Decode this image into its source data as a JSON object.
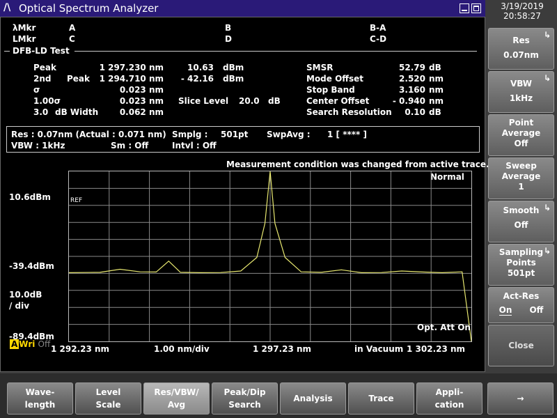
{
  "window": {
    "title": "Optical Spectrum Analyzer",
    "logo": "/\\"
  },
  "datetime": {
    "date": "3/19/2019",
    "time": "20:58:27"
  },
  "markers": {
    "row1": {
      "label": "λMkr",
      "a": "A",
      "b": "B",
      "ba": "B-A"
    },
    "row2": {
      "label": "LMkr",
      "c": "C",
      "d": "D",
      "cd": "C-D"
    }
  },
  "test": {
    "name": "DFB-LD Test",
    "left": [
      {
        "label": "Peak",
        "label2": "",
        "wl": "1 297.230 nm",
        "val": "10.63",
        "unit": "dBm"
      },
      {
        "label": "2nd",
        "label2": "Peak",
        "wl": "1 294.710 nm",
        "val": "-  42.16",
        "unit": "dBm"
      },
      {
        "label": "σ",
        "label2": "",
        "wl": "0.023 nm"
      },
      {
        "label": "1.00σ",
        "label2": "",
        "wl": "0.023 nm"
      },
      {
        "label": "3.0",
        "label2": "dB Width",
        "wl": "0.062 nm"
      }
    ],
    "slice": {
      "label": "Slice Level",
      "value": "20.0",
      "unit": "dB"
    },
    "right": [
      {
        "label": "SMSR",
        "value": "52.79",
        "unit": "dB"
      },
      {
        "label": "Mode Offset",
        "value": "2.520",
        "unit": "nm"
      },
      {
        "label": "Stop Band",
        "value": "3.160",
        "unit": "nm"
      },
      {
        "label": "Center Offset",
        "value": "-  0.940",
        "unit": "nm"
      },
      {
        "label": "Search Resolution",
        "value": "0.10",
        "unit": "dB"
      }
    ]
  },
  "conditions": {
    "res": "Res :  0.07nm (Actual :  0.071 nm)",
    "smplg": "Smplg :",
    "smplg_val": "501pt",
    "swpavg": "SwpAvg :",
    "swpavg_val": "1 [     ****  ]",
    "vbw": "VBW :    1kHz",
    "sm": "Sm :    Off",
    "intvl": "Intvl :    Off"
  },
  "graph": {
    "message": "Measurement condition was changed from active trace.",
    "mode": "Normal",
    "y_top": "10.6dBm",
    "y_mid": "-39.4dBm",
    "y_bottom": "-89.4dBm",
    "scale": "10.0dB",
    "per_div": "/ div",
    "ref": "REF",
    "opt_att": "Opt. Att On",
    "x_start": "1 292.23 nm",
    "x_div": "1.00 nm/div",
    "x_center": "1 297.23 nm",
    "x_medium": "in Vacuum",
    "x_stop": "1 302.23 nm",
    "trace_color": "#e8e870"
  },
  "status": {
    "a": "A",
    "wri": "Wri",
    "off": "Off"
  },
  "softkeys": [
    {
      "line1": "Res",
      "line2": "0.07nm",
      "arrow": "↳"
    },
    {
      "line1": "VBW",
      "line2": "1kHz",
      "arrow": "↳"
    },
    {
      "line1": "Point",
      "line2": "Average",
      "line3": "Off"
    },
    {
      "line1": "Sweep",
      "line2": "Average",
      "line3": "1"
    },
    {
      "line1": "Smooth",
      "line2": "Off",
      "arrow": "↳"
    },
    {
      "line1": "Sampling",
      "line2": "Points",
      "line3": "501pt",
      "arrow": "↳"
    },
    {
      "line1": "Act-Res",
      "on": "On",
      "off": "Off"
    },
    {
      "line1": "Close"
    }
  ],
  "function_keys": [
    {
      "line1": "Wave-",
      "line2": "length"
    },
    {
      "line1": "Level",
      "line2": "Scale"
    },
    {
      "line1": "Res/VBW/",
      "line2": "Avg"
    },
    {
      "line1": "Peak/Dip",
      "line2": "Search"
    },
    {
      "line1": "Analysis",
      "line2": ""
    },
    {
      "line1": "Trace",
      "line2": ""
    },
    {
      "line1": "Appli-",
      "line2": "cation"
    },
    {
      "line1": "→",
      "line2": ""
    }
  ],
  "chart_data": {
    "type": "line",
    "x_unit": "nm",
    "y_unit": "dBm",
    "xlim": [
      1292.23,
      1302.23
    ],
    "ylim": [
      -89.4,
      10.6
    ],
    "series": [
      {
        "x": [
          1292.23,
          1293.0,
          1293.5,
          1294.0,
          1294.4,
          1294.71,
          1295.0,
          1295.5,
          1296.0,
          1296.5,
          1296.9,
          1297.1,
          1297.23,
          1297.35,
          1297.6,
          1298.0,
          1298.5,
          1299.0,
          1299.5,
          1300.0,
          1300.5,
          1301.0,
          1301.5,
          1302.0,
          1302.23
        ],
        "y": [
          -49.0,
          -48.8,
          -47.0,
          -48.5,
          -48.6,
          -42.2,
          -48.8,
          -49.0,
          -48.9,
          -48.0,
          -40.0,
          -20.0,
          10.6,
          -20.0,
          -40.0,
          -48.5,
          -48.8,
          -47.3,
          -49.0,
          -48.9,
          -48.0,
          -48.6,
          -49.0,
          -48.5,
          -89.4
        ]
      }
    ]
  }
}
